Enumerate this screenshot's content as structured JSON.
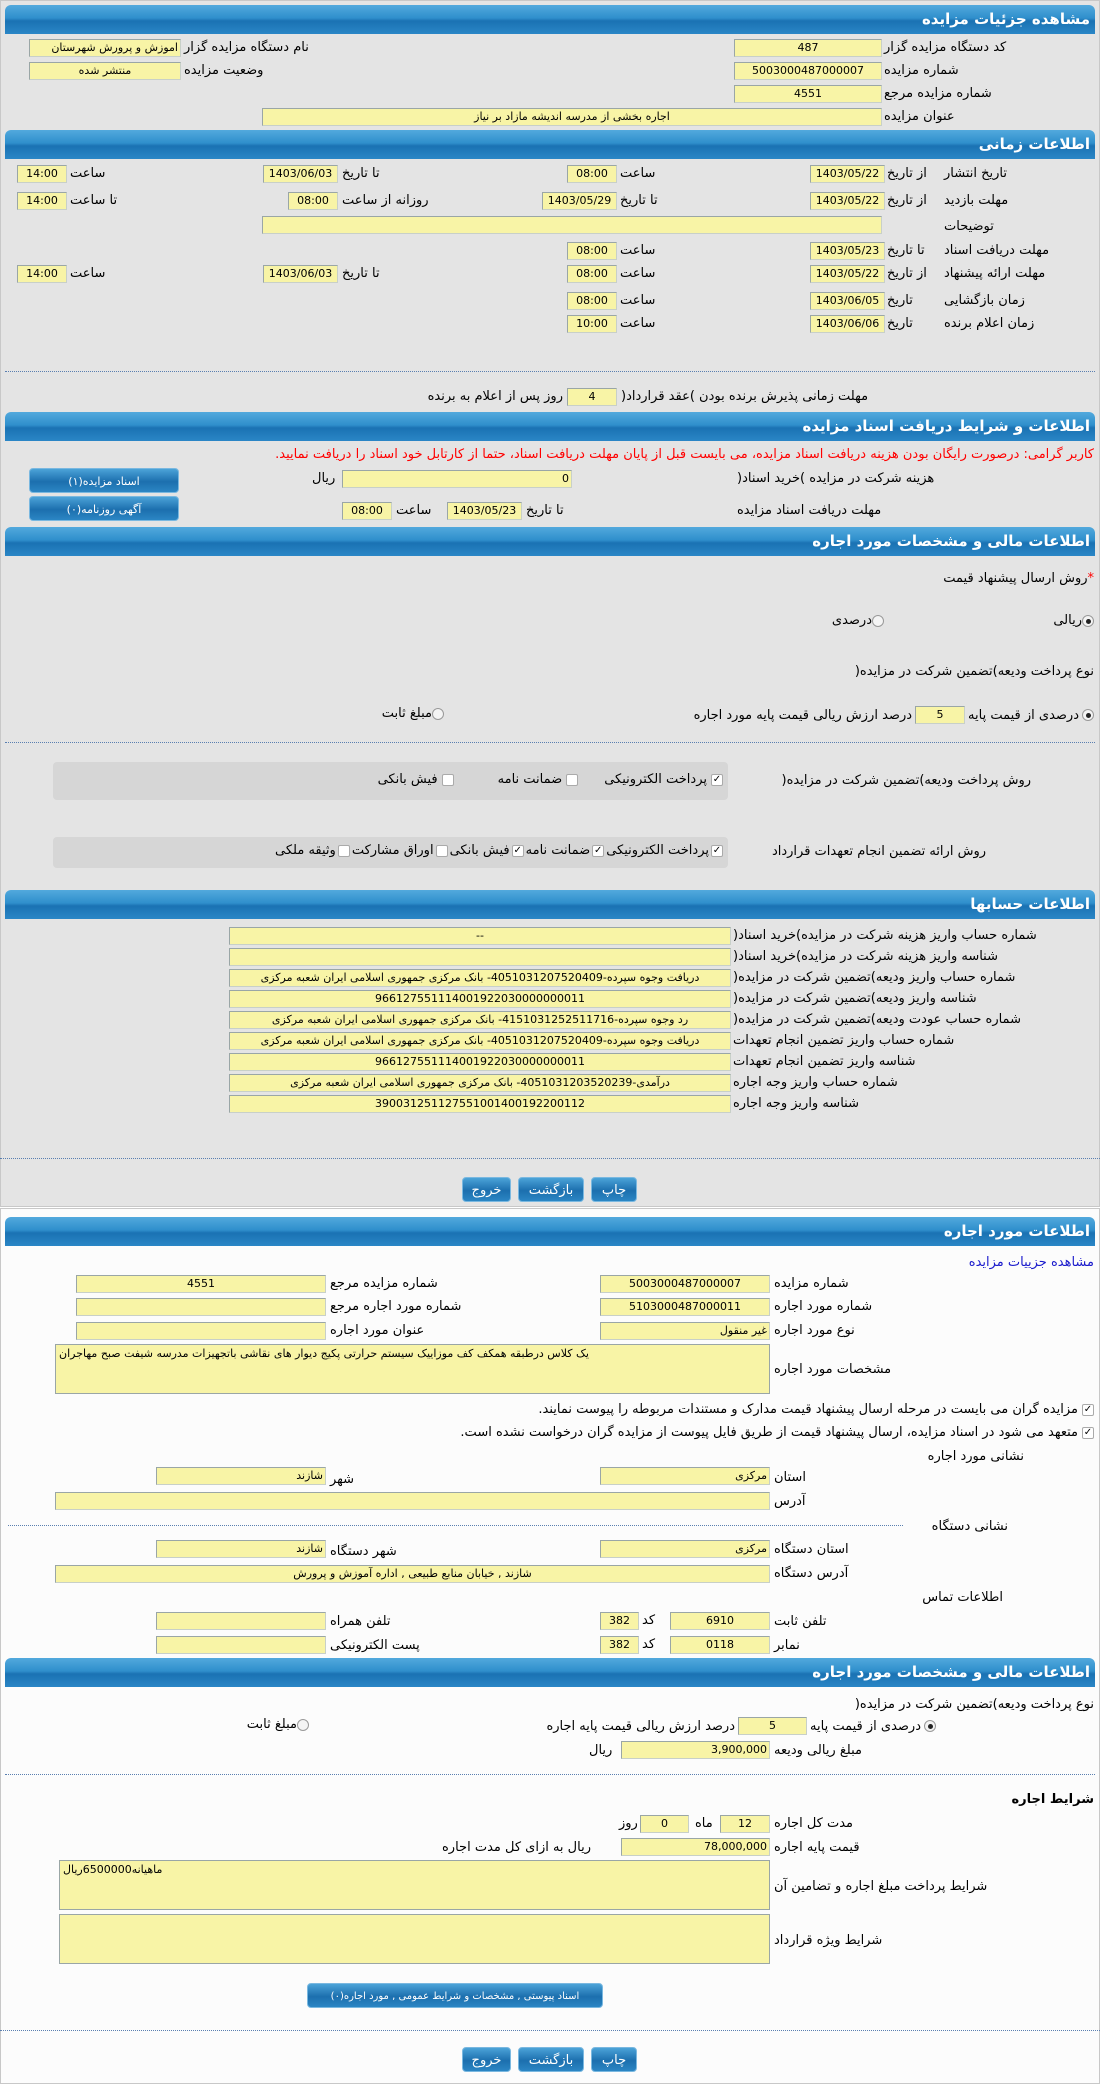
{
  "colors": {
    "header_blue": "#1f7fc0",
    "input_bg": "#f8f4a6",
    "warning": "#ff0000",
    "link": "#1a1acc"
  },
  "auction": {
    "title": "مشاهده جزئیات مزایده",
    "org_code_label": "کد دستگاه مزایده گزار",
    "org_code": "487",
    "auction_no_label": "شماره مزایده",
    "auction_no": "5003000487000007",
    "ref_no_label": "شماره مزایده مرجع",
    "ref_no": "4551",
    "title_label": "عنوان مزایده",
    "auction_title": "اجاره بخشی از مدرسه اندیشه مازاد بر نیاز",
    "org_name_label": "نام دستگاه مزایده گزار",
    "org_name": "اموزش و پرورش شهرستان",
    "status_label": "وضعیت مزایده",
    "status": "منتشر شده"
  },
  "timing": {
    "title": "اطلاعات زمانی",
    "publish": {
      "label": "تاریخ انتشار",
      "from_label": "از تاریخ",
      "from_date": "1403/05/22",
      "time_label": "ساعت",
      "from_time": "08:00",
      "to_label": "تا تاریخ",
      "to_date": "1403/06/03",
      "to_time_label": "ساعت",
      "to_time": "14:00"
    },
    "visit": {
      "label": "مهلت بازدید",
      "from_label": "از تاریخ",
      "from_date": "1403/05/22",
      "to_label": "تا تاریخ",
      "to_date": "1403/05/29",
      "daily_from_label": "روزانه از ساعت",
      "daily_from": "08:00",
      "daily_to_label": "تا ساعت",
      "daily_to": "14:00"
    },
    "notes_label": "توضیحات",
    "notes": "",
    "docs": {
      "label": "مهلت دریافت اسناد",
      "to_label": "تا تاریخ",
      "to_date": "1403/05/23",
      "time_label": "ساعت",
      "time": "08:00"
    },
    "offer": {
      "label": "مهلت ارائه پیشنهاد",
      "from_label": "از تاریخ",
      "from_date": "1403/05/22",
      "time_label": "ساعت",
      "from_time": "08:00",
      "to_label": "تا تاریخ",
      "to_date": "1403/06/03",
      "to_time_label": "ساعت",
      "to_time": "14:00"
    },
    "opening": {
      "label": "زمان بازگشایی",
      "date_label": "تاریخ",
      "date": "1403/06/05",
      "time_label": "ساعت",
      "time": "08:00"
    },
    "winner": {
      "label": "زمان اعلام برنده",
      "date_label": "تاریخ",
      "date": "1403/06/06",
      "time_label": "ساعت",
      "time": "10:00"
    },
    "acceptance_label": "مهلت زمانی پذیرش برنده بودن )عقد قرارداد(",
    "acceptance_days": "4",
    "acceptance_suffix": "روز پس از اعلام به برنده"
  },
  "documents": {
    "title": "اطلاعات و شرایط دریافت اسناد مزایده",
    "notice": "کاربر گرامی: درصورت رایگان بودن هزینه دریافت اسناد مزایده، می بایست قبل از پایان مهلت دریافت اسناد، حتما از کارتابل خود اسناد را دریافت نمایید.",
    "fee_label": "هزینه شرکت در مزایده )خرید اسناد(",
    "fee": "0",
    "currency": "ریال",
    "deadline_label": "مهلت دریافت اسناد مزایده",
    "to_label": "تا تاریخ",
    "date": "1403/05/23",
    "time_label": "ساعت",
    "time": "08:00",
    "docs_button": "اسناد مزایده(۱)",
    "ads_button": "آگهی روزنامه(۰)"
  },
  "financial": {
    "title": "اطلاعات مالی و مشخصات مورد اجاره",
    "required_mark": "*",
    "price_method_label": "روش ارسال پیشنهاد قیمت",
    "price_options": [
      {
        "label": "ریالی",
        "selected": true
      },
      {
        "label": "درصدی",
        "selected": false
      }
    ],
    "deposit_type_label": "نوع پرداخت ودیعه)تضمین شرکت در مزایده(",
    "percent_label": "درصدی از قیمت پایه",
    "percent": "5",
    "percent_suffix": "درصد ارزش ریالی قیمت پایه مورد اجاره",
    "fixed_label": "مبلغ ثابت",
    "deposit_type_selected": "درصدی از قیمت پایه",
    "deposit_method_label": "روش پرداخت ودیعه)تضمین شرکت در مزایده(",
    "deposit_methods": [
      {
        "label": "پرداخت الکترونیکی",
        "checked": true
      },
      {
        "label": "ضمانت نامه",
        "checked": false
      },
      {
        "label": "فیش بانکی",
        "checked": false
      }
    ],
    "guarantee_label": "روش ارائه تضمین انجام تعهدات قرارداد",
    "guarantee_methods": [
      {
        "label": "پرداخت الکترونیکی",
        "checked": true
      },
      {
        "label": "ضمانت نامه",
        "checked": true
      },
      {
        "label": "فیش بانکی",
        "checked": true
      },
      {
        "label": "اوراق مشارکت",
        "checked": false
      },
      {
        "label": "وثیقه ملکی",
        "checked": false
      }
    ]
  },
  "accounts": {
    "title": "اطلاعات حسابها",
    "rows": [
      {
        "label": "شماره حساب واریز هزینه شرکت در مزایده)خرید اسناد(",
        "value": "--"
      },
      {
        "label": "شناسه واریز هزینه شرکت در مزایده)خرید اسناد(",
        "value": ""
      },
      {
        "label": "شماره حساب واریز ودیعه)تضمین شرکت در مزایده(",
        "value": "دریافت وجوه سپرده-4051031207520409- بانک مرکزی جمهوری اسلامی ایران شعبه مرکزی"
      },
      {
        "label": "شناسه واریز ودیعه)تضمین شرکت در مزایده(",
        "value": "966127551114001922030000000011"
      },
      {
        "label": "شماره حساب عودت ودیعه)تضمین شرکت در مزایده(",
        "value": "رد وجوه سپرده-4151031252511716- بانک مرکزی جمهوری اسلامی ایران شعبه مرکزی"
      },
      {
        "label": "شماره حساب واریز تضمین انجام تعهدات",
        "value": "دریافت وجوه سپرده-4051031207520409- بانک مرکزی جمهوری اسلامی ایران شعبه مرکزی"
      },
      {
        "label": "شناسه واریز تضمین انجام تعهدات",
        "value": "966127551114001922030000000011"
      },
      {
        "label": "شماره حساب واریز وجه اجاره",
        "value": "درآمدی-4051031203520239- بانک مرکزی جمهوری اسلامی ایران شعبه مرکزی"
      },
      {
        "label": "شناسه واریز وجه اجاره",
        "value": "390031251127551001400192200112"
      }
    ]
  },
  "buttons": {
    "print": "چاپ",
    "back": "بازگشت",
    "exit": "خروج"
  },
  "lease": {
    "title": "اطلاعات مورد اجاره",
    "details_link": "مشاهده جزییات مزایده",
    "auction_no_label": "شماره مزایده",
    "auction_no": "5003000487000007",
    "ref_no_label": "شماره مزایده مرجع",
    "ref_no": "4551",
    "item_no_label": "شماره مورد اجاره",
    "item_no": "5103000487000011",
    "item_ref_label": "شماره مورد اجاره مرجع",
    "item_ref": "",
    "type_label": "نوع مورد اجاره",
    "type": "غیر منقول",
    "item_title_label": "عنوان مورد اجاره",
    "item_title": "",
    "spec_label": "مشخصات مورد اجاره",
    "spec": "یک کلاس درطبقه همکف کف موزاییک سیستم حرارتی پکیج دیوار های نقاشی باتجهیزات مدرسه شیفت صبح مهاجران",
    "check1": "مزایده گران می بایست در مرحله ارسال پیشنهاد قیمت مدارک و مستندات مربوطه را پیوست نمایند.",
    "check2": "متعهد می شود در اسناد مزایده، ارسال پیشنهاد قیمت از طریق فایل پیوست از مزایده گران درخواست نشده است.",
    "address_title": "نشانی مورد اجاره",
    "province_label": "استان",
    "province": "مرکزی",
    "city_label": "شهر",
    "city": "شازند",
    "address_label": "آدرس",
    "address": "",
    "org_address_title": "نشانی دستگاه",
    "org_province_label": "استان دستگاه",
    "org_province": "مرکزی",
    "org_city_label": "شهر دستگاه",
    "org_city": "شازند",
    "org_address_label": "آدرس دستگاه",
    "org_address": "شازند , خیابان منابع طبیعی , اداره آموزش و پرورش",
    "contact_title": "اطلاعات تماس",
    "phone_label": "تلفن ثابت",
    "phone": "6910",
    "code_label": "کد",
    "phone_code": "382",
    "mobile_label": "تلفن همراه",
    "mobile": "",
    "fax_label": "نمابر",
    "fax": "0118",
    "fax_code": "382",
    "email_label": "پست الکترونیکی",
    "email": ""
  },
  "lease_financial": {
    "title": "اطلاعات مالی و مشخصات مورد اجاره",
    "deposit_type_label": "نوع پرداخت ودیعه)تضمین شرکت در مزایده(",
    "percent_label": "درصدی از قیمت پایه",
    "percent": "5",
    "percent_suffix": "درصد ارزش ریالی قیمت پایه اجاره",
    "fixed_label": "مبلغ ثابت",
    "deposit_amount_label": "مبلغ ریالی ودیعه",
    "deposit_amount": "3,900,000",
    "currency": "ریال",
    "terms_title": "شرایط اجاره",
    "duration_label": "مدت کل اجاره",
    "months": "12",
    "months_label": "ماه",
    "days": "0",
    "days_label": "روز",
    "base_price_label": "قیمت پایه اجاره",
    "base_price": "78,000,000",
    "base_price_suffix": "ریال به ازای کل مدت اجاره",
    "payment_terms_label": "شرایط پرداخت مبلغ اجاره و تضامین آن",
    "payment_terms": "ماهیانه6500000ریال",
    "special_terms_label": "شرایط ویژه قرارداد",
    "special_terms": "",
    "attachments_button": "اسناد پیوستی , مشخصات و شرایط عمومی , مورد اجاره(۰)"
  }
}
